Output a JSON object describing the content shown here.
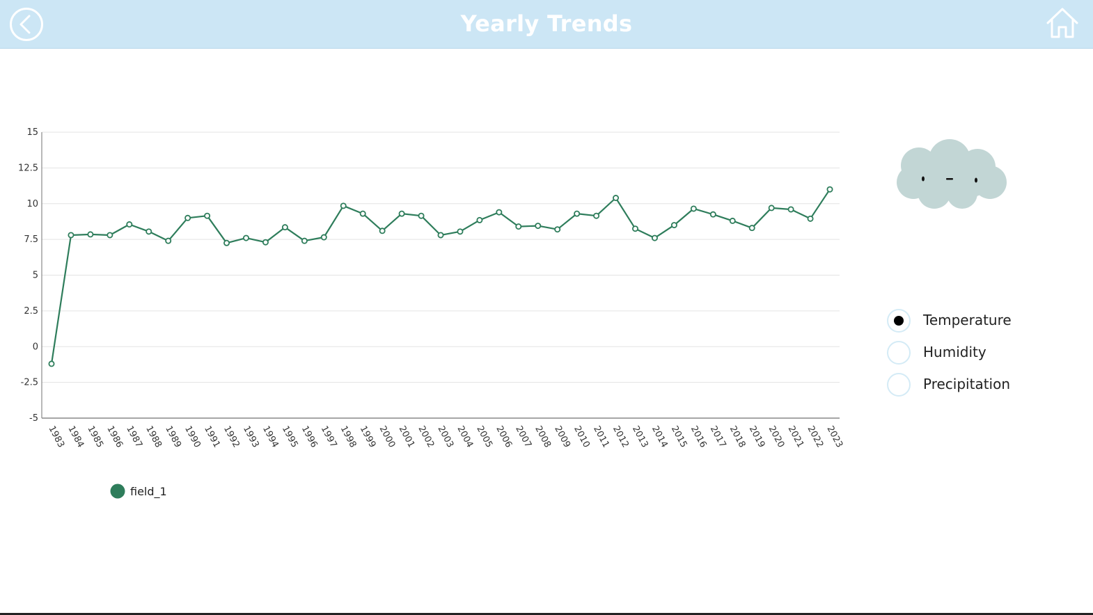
{
  "header": {
    "title": "Yearly Trends",
    "background_color": "#cce6f5",
    "back_icon": "back-arrow-icon",
    "home_icon": "home-icon"
  },
  "chart_data": {
    "type": "line",
    "x": [
      "1983",
      "1984",
      "1985",
      "1986",
      "1987",
      "1988",
      "1989",
      "1990",
      "1991",
      "1992",
      "1993",
      "1994",
      "1995",
      "1996",
      "1997",
      "1998",
      "1999",
      "2000",
      "2001",
      "2002",
      "2003",
      "2004",
      "2005",
      "2006",
      "2007",
      "2008",
      "2009",
      "2010",
      "2011",
      "2012",
      "2013",
      "2014",
      "2015",
      "2016",
      "2017",
      "2018",
      "2019",
      "2020",
      "2021",
      "2022",
      "2023"
    ],
    "series": [
      {
        "name": "field_1",
        "color": "#2e7d5b",
        "values": [
          -1.2,
          7.8,
          7.85,
          7.8,
          8.55,
          8.05,
          7.4,
          9.0,
          9.15,
          7.25,
          7.6,
          7.3,
          8.35,
          7.4,
          7.65,
          9.85,
          9.3,
          8.1,
          9.3,
          9.15,
          7.8,
          8.05,
          8.85,
          9.4,
          8.4,
          8.45,
          8.2,
          9.3,
          9.15,
          10.4,
          8.25,
          7.6,
          8.5,
          9.65,
          9.25,
          8.8,
          8.3,
          9.7,
          9.6,
          8.95,
          11.0
        ]
      }
    ],
    "y_ticks": [
      "15",
      "12.5",
      "10",
      "7.5",
      "5",
      "2.5",
      "0",
      "-2.5",
      "-5"
    ],
    "ylim": [
      -5,
      15
    ],
    "grid": true,
    "legend": "bottom-left"
  },
  "weather_icon": "cloud-icon",
  "radio_options": [
    {
      "label": "Temperature",
      "selected": true
    },
    {
      "label": "Humidity",
      "selected": false
    },
    {
      "label": "Precipitation",
      "selected": false
    }
  ]
}
